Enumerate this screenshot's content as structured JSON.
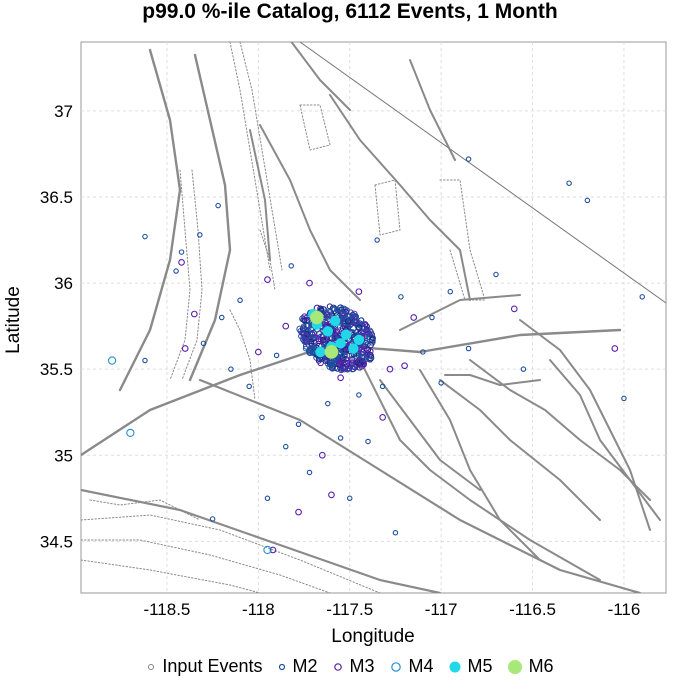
{
  "chart_data": {
    "type": "scatter",
    "title": "p99.0 %-ile Catalog, 6112 Events, 1 Month",
    "xlabel": "Longitude",
    "ylabel": "Latitude",
    "xlim": [
      -118.97,
      -115.77
    ],
    "ylim": [
      34.2,
      37.4
    ],
    "x_ticks": [
      "-118.5",
      "-118",
      "-117.5",
      "-117",
      "-116.5",
      "-116"
    ],
    "x_tick_values": [
      -118.5,
      -118,
      -117.5,
      -117,
      -116.5,
      -116
    ],
    "y_ticks": [
      "37",
      "36.5",
      "36",
      "35.5",
      "35",
      "34.5"
    ],
    "y_tick_values": [
      37,
      36.5,
      36,
      35.5,
      35,
      34.5
    ],
    "grid": true,
    "legend_placement": "bottom",
    "legend": [
      {
        "label": "Input Events",
        "color": "#808080",
        "style": "open"
      },
      {
        "label": "M2",
        "color": "#1f4e9e",
        "style": "open"
      },
      {
        "label": "M3",
        "color": "#5a1fb0",
        "style": "open"
      },
      {
        "label": "M4",
        "color": "#2a8fd0",
        "style": "open"
      },
      {
        "label": "M5",
        "color": "#20d8e8",
        "style": "filled"
      },
      {
        "label": "M6",
        "color": "#a8e878",
        "style": "filled"
      }
    ],
    "series": [
      {
        "name": "M2",
        "points": [
          [
            -118.62,
            36.27
          ],
          [
            -118.45,
            36.07
          ],
          [
            -118.32,
            36.28
          ],
          [
            -118.22,
            36.45
          ],
          [
            -118.2,
            35.8
          ],
          [
            -118.1,
            35.9
          ],
          [
            -118.15,
            35.5
          ],
          [
            -118.05,
            35.4
          ],
          [
            -117.98,
            35.22
          ],
          [
            -117.85,
            35.05
          ],
          [
            -117.72,
            34.9
          ],
          [
            -117.55,
            35.1
          ],
          [
            -117.5,
            34.75
          ],
          [
            -117.25,
            34.55
          ],
          [
            -117.1,
            35.6
          ],
          [
            -117.05,
            35.8
          ],
          [
            -116.95,
            35.95
          ],
          [
            -116.85,
            36.72
          ],
          [
            -116.7,
            36.05
          ],
          [
            -116.55,
            35.5
          ],
          [
            -116.3,
            36.58
          ],
          [
            -116.2,
            36.48
          ],
          [
            -116.0,
            35.33
          ],
          [
            -115.9,
            35.92
          ],
          [
            -118.42,
            36.18
          ],
          [
            -118.3,
            35.65
          ],
          [
            -117.9,
            35.58
          ],
          [
            -117.82,
            36.1
          ],
          [
            -117.35,
            36.25
          ],
          [
            -117.22,
            35.92
          ],
          [
            -117.95,
            34.75
          ],
          [
            -118.25,
            34.63
          ],
          [
            -118.62,
            35.55
          ],
          [
            -117.4,
            35.08
          ],
          [
            -117.0,
            35.42
          ],
          [
            -117.62,
            35.3
          ],
          [
            -117.78,
            35.18
          ],
          [
            -117.45,
            35.35
          ],
          [
            -117.32,
            35.4
          ],
          [
            -116.85,
            35.62
          ]
        ]
      },
      {
        "name": "M3",
        "points": [
          [
            -118.42,
            36.12
          ],
          [
            -118.35,
            35.82
          ],
          [
            -118.4,
            35.62
          ],
          [
            -117.78,
            34.67
          ],
          [
            -117.6,
            34.77
          ],
          [
            -117.32,
            35.22
          ],
          [
            -117.2,
            35.52
          ],
          [
            -116.6,
            35.85
          ],
          [
            -116.05,
            35.62
          ],
          [
            -117.95,
            36.02
          ],
          [
            -117.85,
            35.75
          ],
          [
            -117.72,
            36.0
          ],
          [
            -117.45,
            35.95
          ],
          [
            -117.28,
            35.5
          ],
          [
            -118.0,
            35.6
          ],
          [
            -117.92,
            34.45
          ],
          [
            -117.65,
            35.0
          ],
          [
            -117.15,
            35.8
          ],
          [
            -117.38,
            35.7
          ],
          [
            -117.55,
            35.45
          ]
        ]
      },
      {
        "name": "M4",
        "points": [
          [
            -118.8,
            35.55
          ],
          [
            -118.7,
            35.13
          ],
          [
            -117.95,
            34.45
          ],
          [
            -117.58,
            35.55
          ],
          [
            -117.42,
            35.75
          ]
        ]
      },
      {
        "name": "M5",
        "points": [
          [
            -117.62,
            35.72
          ],
          [
            -117.55,
            35.65
          ],
          [
            -117.48,
            35.62
          ],
          [
            -117.66,
            35.6
          ],
          [
            -117.58,
            35.78
          ],
          [
            -117.52,
            35.7
          ],
          [
            -117.7,
            35.82
          ],
          [
            -117.45,
            35.67
          ],
          [
            -117.6,
            35.63
          ],
          [
            -117.68,
            35.76
          ]
        ]
      },
      {
        "name": "M6",
        "points": [
          [
            -117.6,
            35.6
          ],
          [
            -117.68,
            35.8
          ]
        ]
      }
    ],
    "input_events_note_count": 6112
  },
  "legend_items": [
    {
      "label": "Input Events"
    },
    {
      "label": "M2"
    },
    {
      "label": "M3"
    },
    {
      "label": "M4"
    },
    {
      "label": "M5"
    },
    {
      "label": "M6"
    }
  ]
}
